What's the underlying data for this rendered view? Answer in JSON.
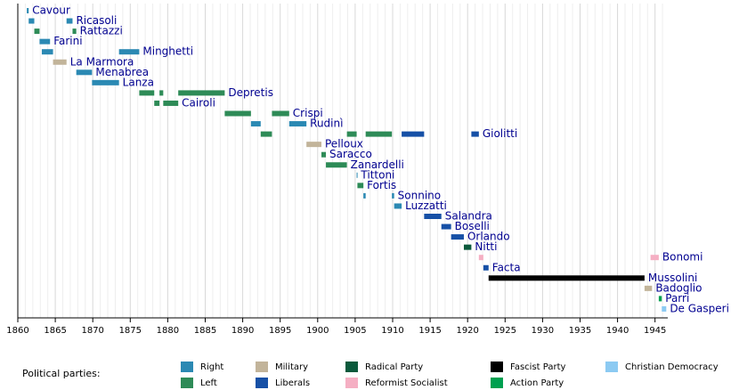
{
  "chart_data": {
    "type": "timeline",
    "xlim": [
      1860,
      1946.7
    ],
    "xticks": [
      1860,
      1865,
      1870,
      1875,
      1880,
      1885,
      1890,
      1895,
      1900,
      1905,
      1910,
      1915,
      1920,
      1925,
      1930,
      1935,
      1940,
      1945
    ],
    "xminorticks": [
      1861,
      1862,
      1863,
      1864,
      1866,
      1867,
      1868,
      1869,
      1871,
      1872,
      1873,
      1874,
      1876,
      1877,
      1878,
      1879,
      1881,
      1882,
      1883,
      1884,
      1886,
      1887,
      1888,
      1889,
      1891,
      1892,
      1893,
      1894,
      1896,
      1897,
      1898,
      1899,
      1901,
      1902,
      1903,
      1904,
      1906,
      1907,
      1908,
      1909,
      1911,
      1912,
      1913,
      1914,
      1916,
      1917,
      1918,
      1919,
      1921,
      1922,
      1923,
      1924,
      1926,
      1927,
      1928,
      1929,
      1931,
      1932,
      1933,
      1934,
      1936,
      1937,
      1938,
      1939,
      1941,
      1942,
      1943,
      1944,
      1946
    ],
    "grid": true,
    "legend_title": "Political parties:",
    "parties": [
      {
        "name": "Right",
        "color": "#2b89b3"
      },
      {
        "name": "Left",
        "color": "#2e8b57"
      },
      {
        "name": "Military",
        "color": "#c2b49a"
      },
      {
        "name": "Liberals",
        "color": "#1650a6"
      },
      {
        "name": "Radical Party",
        "color": "#0b5a3c"
      },
      {
        "name": "Reformist Socialist",
        "color": "#f5afc3"
      },
      {
        "name": "Fascist Party",
        "color": "#000000"
      },
      {
        "name": "Action Party",
        "color": "#00a050"
      },
      {
        "name": "Christian Democracy",
        "color": "#8ccaf2"
      }
    ],
    "rows": [
      {
        "name": "Cavour",
        "terms": [
          {
            "start": 1861.2,
            "end": 1861.45,
            "party": "Right"
          }
        ]
      },
      {
        "name": "Ricasoli",
        "terms": [
          {
            "start": 1861.45,
            "end": 1862.2,
            "party": "Right"
          },
          {
            "start": 1866.5,
            "end": 1867.3,
            "party": "Right"
          }
        ]
      },
      {
        "name": "Rattazzi",
        "terms": [
          {
            "start": 1862.2,
            "end": 1862.9,
            "party": "Left"
          },
          {
            "start": 1867.3,
            "end": 1867.8,
            "party": "Left"
          }
        ]
      },
      {
        "name": "Farini",
        "terms": [
          {
            "start": 1862.9,
            "end": 1864.3,
            "party": "Right"
          }
        ]
      },
      {
        "name": "Minghetti",
        "terms": [
          {
            "start": 1863.2,
            "end": 1864.7,
            "party": "Right"
          },
          {
            "start": 1873.5,
            "end": 1876.2,
            "party": "Right"
          }
        ]
      },
      {
        "name": "La Marmora",
        "terms": [
          {
            "start": 1864.7,
            "end": 1866.5,
            "party": "Military"
          }
        ]
      },
      {
        "name": "Menabrea",
        "terms": [
          {
            "start": 1867.8,
            "end": 1869.9,
            "party": "Right"
          }
        ]
      },
      {
        "name": "Lanza",
        "terms": [
          {
            "start": 1869.9,
            "end": 1873.5,
            "party": "Right"
          }
        ]
      },
      {
        "name": "Depretis",
        "terms": [
          {
            "start": 1876.2,
            "end": 1878.2,
            "party": "Left"
          },
          {
            "start": 1878.9,
            "end": 1879.4,
            "party": "Left"
          },
          {
            "start": 1881.4,
            "end": 1887.6,
            "party": "Left"
          }
        ]
      },
      {
        "name": "Cairoli",
        "terms": [
          {
            "start": 1878.2,
            "end": 1878.9,
            "party": "Left"
          },
          {
            "start": 1879.4,
            "end": 1881.4,
            "party": "Left"
          }
        ]
      },
      {
        "name": "Crispi",
        "terms": [
          {
            "start": 1887.6,
            "end": 1891.1,
            "party": "Left"
          },
          {
            "start": 1893.9,
            "end": 1896.2,
            "party": "Left"
          }
        ]
      },
      {
        "name": "Rudinì",
        "terms": [
          {
            "start": 1891.1,
            "end": 1892.4,
            "party": "Right"
          },
          {
            "start": 1896.2,
            "end": 1898.5,
            "party": "Right"
          }
        ]
      },
      {
        "name": "Giolitti",
        "terms": [
          {
            "start": 1892.4,
            "end": 1893.9,
            "party": "Left"
          },
          {
            "start": 1903.9,
            "end": 1905.2,
            "party": "Left"
          },
          {
            "start": 1906.4,
            "end": 1909.9,
            "party": "Left"
          },
          {
            "start": 1911.2,
            "end": 1914.2,
            "party": "Liberals"
          },
          {
            "start": 1920.5,
            "end": 1921.5,
            "party": "Liberals"
          }
        ]
      },
      {
        "name": "Pelloux",
        "terms": [
          {
            "start": 1898.5,
            "end": 1900.5,
            "party": "Military"
          }
        ]
      },
      {
        "name": "Saracco",
        "terms": [
          {
            "start": 1900.5,
            "end": 1901.1,
            "party": "Left"
          }
        ]
      },
      {
        "name": "Zanardelli",
        "terms": [
          {
            "start": 1901.1,
            "end": 1903.9,
            "party": "Left"
          }
        ]
      },
      {
        "name": "Tittoni",
        "terms": [
          {
            "start": 1905.2,
            "end": 1905.3,
            "party": "Right"
          }
        ]
      },
      {
        "name": "Fortis",
        "terms": [
          {
            "start": 1905.3,
            "end": 1906.1,
            "party": "Left"
          }
        ]
      },
      {
        "name": "Sonnino",
        "terms": [
          {
            "start": 1906.1,
            "end": 1906.4,
            "party": "Right"
          },
          {
            "start": 1909.9,
            "end": 1910.2,
            "party": "Right"
          }
        ]
      },
      {
        "name": "Luzzatti",
        "terms": [
          {
            "start": 1910.2,
            "end": 1911.2,
            "party": "Right"
          }
        ]
      },
      {
        "name": "Salandra",
        "terms": [
          {
            "start": 1914.2,
            "end": 1916.5,
            "party": "Liberals"
          }
        ]
      },
      {
        "name": "Boselli",
        "terms": [
          {
            "start": 1916.5,
            "end": 1917.8,
            "party": "Liberals"
          }
        ]
      },
      {
        "name": "Orlando",
        "terms": [
          {
            "start": 1917.8,
            "end": 1919.5,
            "party": "Liberals"
          }
        ]
      },
      {
        "name": "Nitti",
        "terms": [
          {
            "start": 1919.5,
            "end": 1920.5,
            "party": "Radical Party"
          }
        ]
      },
      {
        "name": "Bonomi",
        "terms": [
          {
            "start": 1921.5,
            "end": 1922.1,
            "party": "Reformist Socialist"
          },
          {
            "start": 1944.4,
            "end": 1945.5,
            "party": "Reformist Socialist"
          }
        ]
      },
      {
        "name": "Facta",
        "terms": [
          {
            "start": 1922.1,
            "end": 1922.8,
            "party": "Liberals"
          }
        ]
      },
      {
        "name": "Mussolini",
        "terms": [
          {
            "start": 1922.8,
            "end": 1943.6,
            "party": "Fascist Party"
          }
        ]
      },
      {
        "name": "Badoglio",
        "terms": [
          {
            "start": 1943.6,
            "end": 1944.6,
            "party": "Military"
          }
        ]
      },
      {
        "name": "Parri",
        "terms": [
          {
            "start": 1945.5,
            "end": 1945.9,
            "party": "Action Party"
          }
        ]
      },
      {
        "name": "De Gasperi",
        "terms": [
          {
            "start": 1945.9,
            "end": 1946.5,
            "party": "Christian Democracy"
          }
        ]
      }
    ]
  }
}
